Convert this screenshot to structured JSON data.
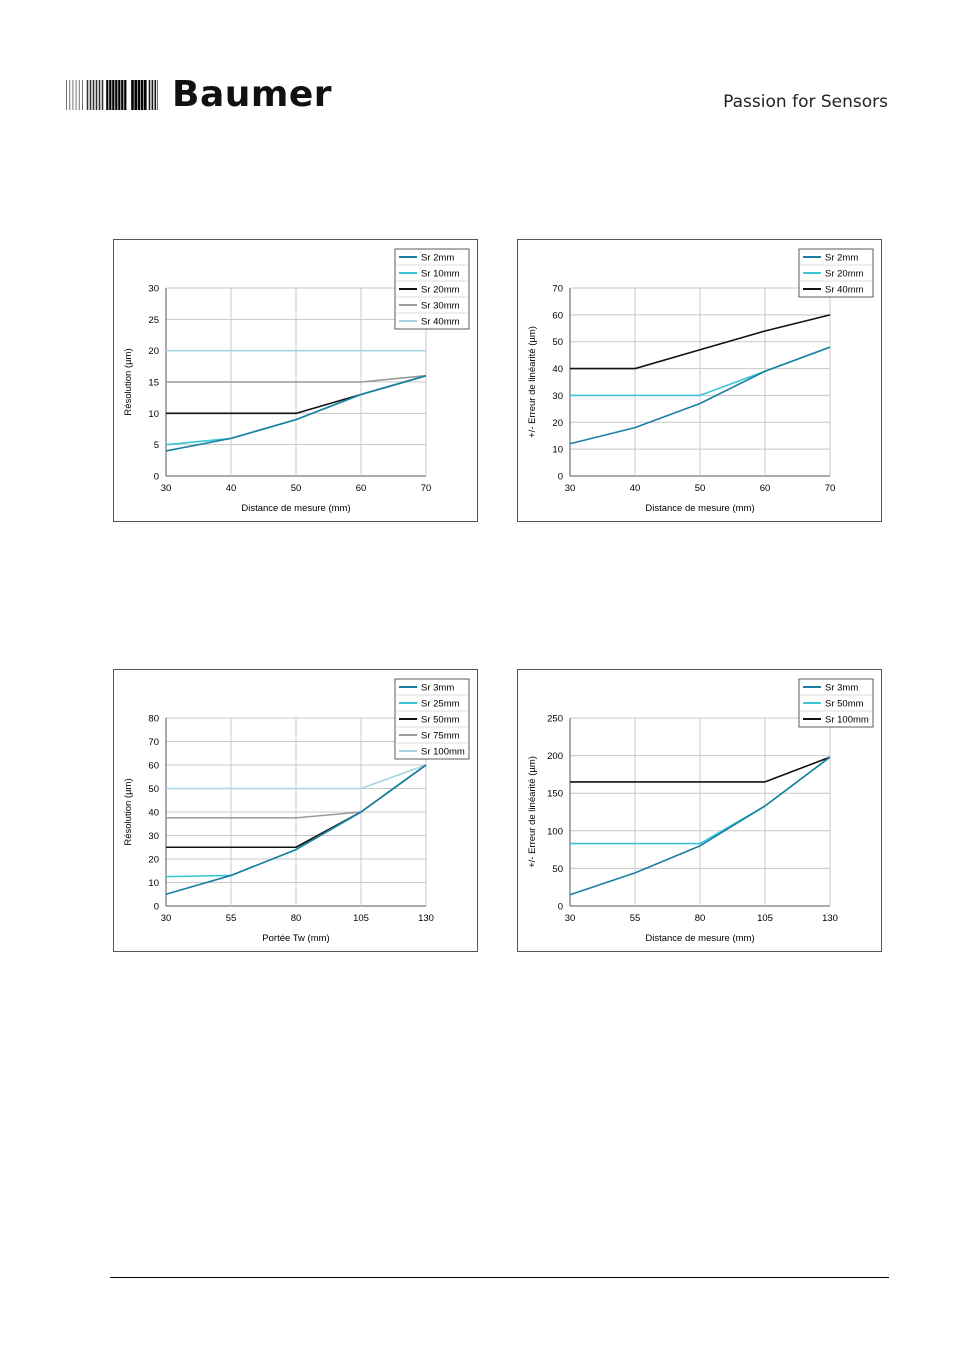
{
  "header": {
    "brand": "Baumer",
    "tagline": "Passion for Sensors",
    "logo_icon": "baumer-dot-grid-logo-icon"
  },
  "colors": {
    "sr_small": "#1b7fa3",
    "sr_mid": "#3cc4d6",
    "sr_black": "#111111",
    "sr_grey": "#9a9a9a",
    "sr_light": "#a8d4e3",
    "grid": "#c8c8c8"
  },
  "chart_data": [
    {
      "id": "c1",
      "type": "line",
      "x": [
        30,
        40,
        50,
        60,
        70
      ],
      "xlabel": "Distance de mesure (mm)",
      "ylabel": "Résolution (µm)",
      "xlim": [
        30,
        70
      ],
      "ylim": [
        0,
        30
      ],
      "yticks": [
        0,
        5,
        10,
        15,
        20,
        25,
        30
      ],
      "grid": true,
      "legend": "top-right",
      "series": [
        {
          "name": "Sr 2mm",
          "color": "#1b7fa3",
          "values": [
            4,
            6,
            9,
            13,
            16
          ]
        },
        {
          "name": "Sr 10mm",
          "color": "#3cc4d6",
          "values": [
            5,
            6,
            9,
            13,
            16
          ]
        },
        {
          "name": "Sr 20mm",
          "color": "#111111",
          "values": [
            10,
            10,
            10,
            13,
            16
          ]
        },
        {
          "name": "Sr 30mm",
          "color": "#9a9a9a",
          "values": [
            15,
            15,
            15,
            15,
            16
          ]
        },
        {
          "name": "Sr 40mm",
          "color": "#a8d4e3",
          "values": [
            20,
            20,
            20,
            20,
            20
          ]
        }
      ]
    },
    {
      "id": "c2",
      "type": "line",
      "x": [
        30,
        40,
        50,
        60,
        70
      ],
      "xlabel": "Distance de mesure (mm)",
      "ylabel": "+/- Erreur de linéarité (µm)",
      "xlim": [
        30,
        70
      ],
      "ylim": [
        0,
        70
      ],
      "yticks": [
        0,
        10,
        20,
        30,
        40,
        50,
        60,
        70
      ],
      "grid": true,
      "legend": "top-right",
      "series": [
        {
          "name": "Sr 2mm",
          "color": "#1b7fa3",
          "values": [
            12,
            18,
            27,
            39,
            48
          ]
        },
        {
          "name": "Sr 20mm",
          "color": "#3cc4d6",
          "values": [
            30,
            30,
            30,
            39,
            48
          ]
        },
        {
          "name": "Sr 40mm",
          "color": "#111111",
          "values": [
            40,
            40,
            47,
            54,
            60
          ]
        }
      ]
    },
    {
      "id": "c3",
      "type": "line",
      "x": [
        30,
        55,
        80,
        105,
        130
      ],
      "xlabel": "Portée Tw (mm)",
      "ylabel": "Résolution (µm)",
      "xlim": [
        30,
        130
      ],
      "ylim": [
        0,
        80
      ],
      "yticks": [
        0,
        10,
        20,
        30,
        40,
        50,
        60,
        70,
        80
      ],
      "grid": true,
      "legend": "top-right",
      "series": [
        {
          "name": "Sr 3mm",
          "color": "#1b7fa3",
          "values": [
            5,
            13,
            24,
            40,
            60
          ]
        },
        {
          "name": "Sr 25mm",
          "color": "#3cc4d6",
          "values": [
            12.5,
            13,
            24,
            40,
            60
          ]
        },
        {
          "name": "Sr 50mm",
          "color": "#111111",
          "values": [
            25,
            25,
            25,
            40,
            60
          ]
        },
        {
          "name": "Sr 75mm",
          "color": "#9a9a9a",
          "values": [
            37.5,
            37.5,
            37.5,
            40,
            60
          ]
        },
        {
          "name": "Sr 100mm",
          "color": "#a8d4e3",
          "values": [
            50,
            50,
            50,
            50,
            60
          ]
        }
      ]
    },
    {
      "id": "c4",
      "type": "line",
      "x": [
        30,
        55,
        80,
        105,
        130
      ],
      "xlabel": "Distance de mesure (mm)",
      "ylabel": "+/- Erreur de linéarité (µm)",
      "xlim": [
        30,
        130
      ],
      "ylim": [
        0,
        250
      ],
      "yticks": [
        0,
        50,
        100,
        150,
        200,
        250
      ],
      "grid": true,
      "legend": "top-right",
      "series": [
        {
          "name": "Sr 3mm",
          "color": "#1b7fa3",
          "values": [
            15,
            44,
            80,
            133,
            198
          ]
        },
        {
          "name": "Sr 50mm",
          "color": "#3cc4d6",
          "values": [
            83,
            83,
            83,
            133,
            198
          ]
        },
        {
          "name": "Sr 100mm",
          "color": "#111111",
          "values": [
            165,
            165,
            165,
            165,
            198
          ]
        }
      ]
    }
  ]
}
